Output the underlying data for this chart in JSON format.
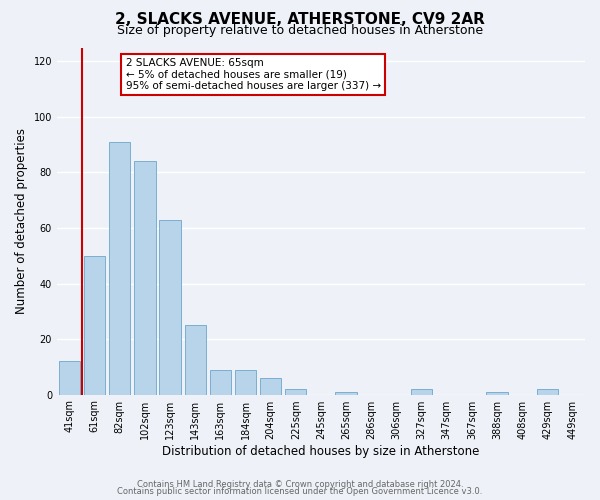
{
  "title": "2, SLACKS AVENUE, ATHERSTONE, CV9 2AR",
  "subtitle": "Size of property relative to detached houses in Atherstone",
  "xlabel": "Distribution of detached houses by size in Atherstone",
  "ylabel": "Number of detached properties",
  "bar_labels": [
    "41sqm",
    "61sqm",
    "82sqm",
    "102sqm",
    "123sqm",
    "143sqm",
    "163sqm",
    "184sqm",
    "204sqm",
    "225sqm",
    "245sqm",
    "265sqm",
    "286sqm",
    "306sqm",
    "327sqm",
    "347sqm",
    "367sqm",
    "388sqm",
    "408sqm",
    "429sqm",
    "449sqm"
  ],
  "bar_values": [
    12,
    50,
    91,
    84,
    63,
    25,
    9,
    9,
    6,
    2,
    0,
    1,
    0,
    0,
    2,
    0,
    0,
    1,
    0,
    2,
    0
  ],
  "bar_color": "#b8d4ea",
  "bar_edge_color": "#7aaed0",
  "vline_color": "#cc0000",
  "annotation_box_text": "2 SLACKS AVENUE: 65sqm\n← 5% of detached houses are smaller (19)\n95% of semi-detached houses are larger (337) →",
  "annotation_box_color": "#cc0000",
  "ylim": [
    0,
    125
  ],
  "yticks": [
    0,
    20,
    40,
    60,
    80,
    100,
    120
  ],
  "footer_line1": "Contains HM Land Registry data © Crown copyright and database right 2024.",
  "footer_line2": "Contains public sector information licensed under the Open Government Licence v3.0.",
  "background_color": "#eef2f8",
  "grid_color": "#ffffff",
  "title_fontsize": 11,
  "subtitle_fontsize": 9,
  "axis_label_fontsize": 8.5,
  "tick_fontsize": 7,
  "footer_fontsize": 6,
  "annotation_fontsize": 7.5
}
